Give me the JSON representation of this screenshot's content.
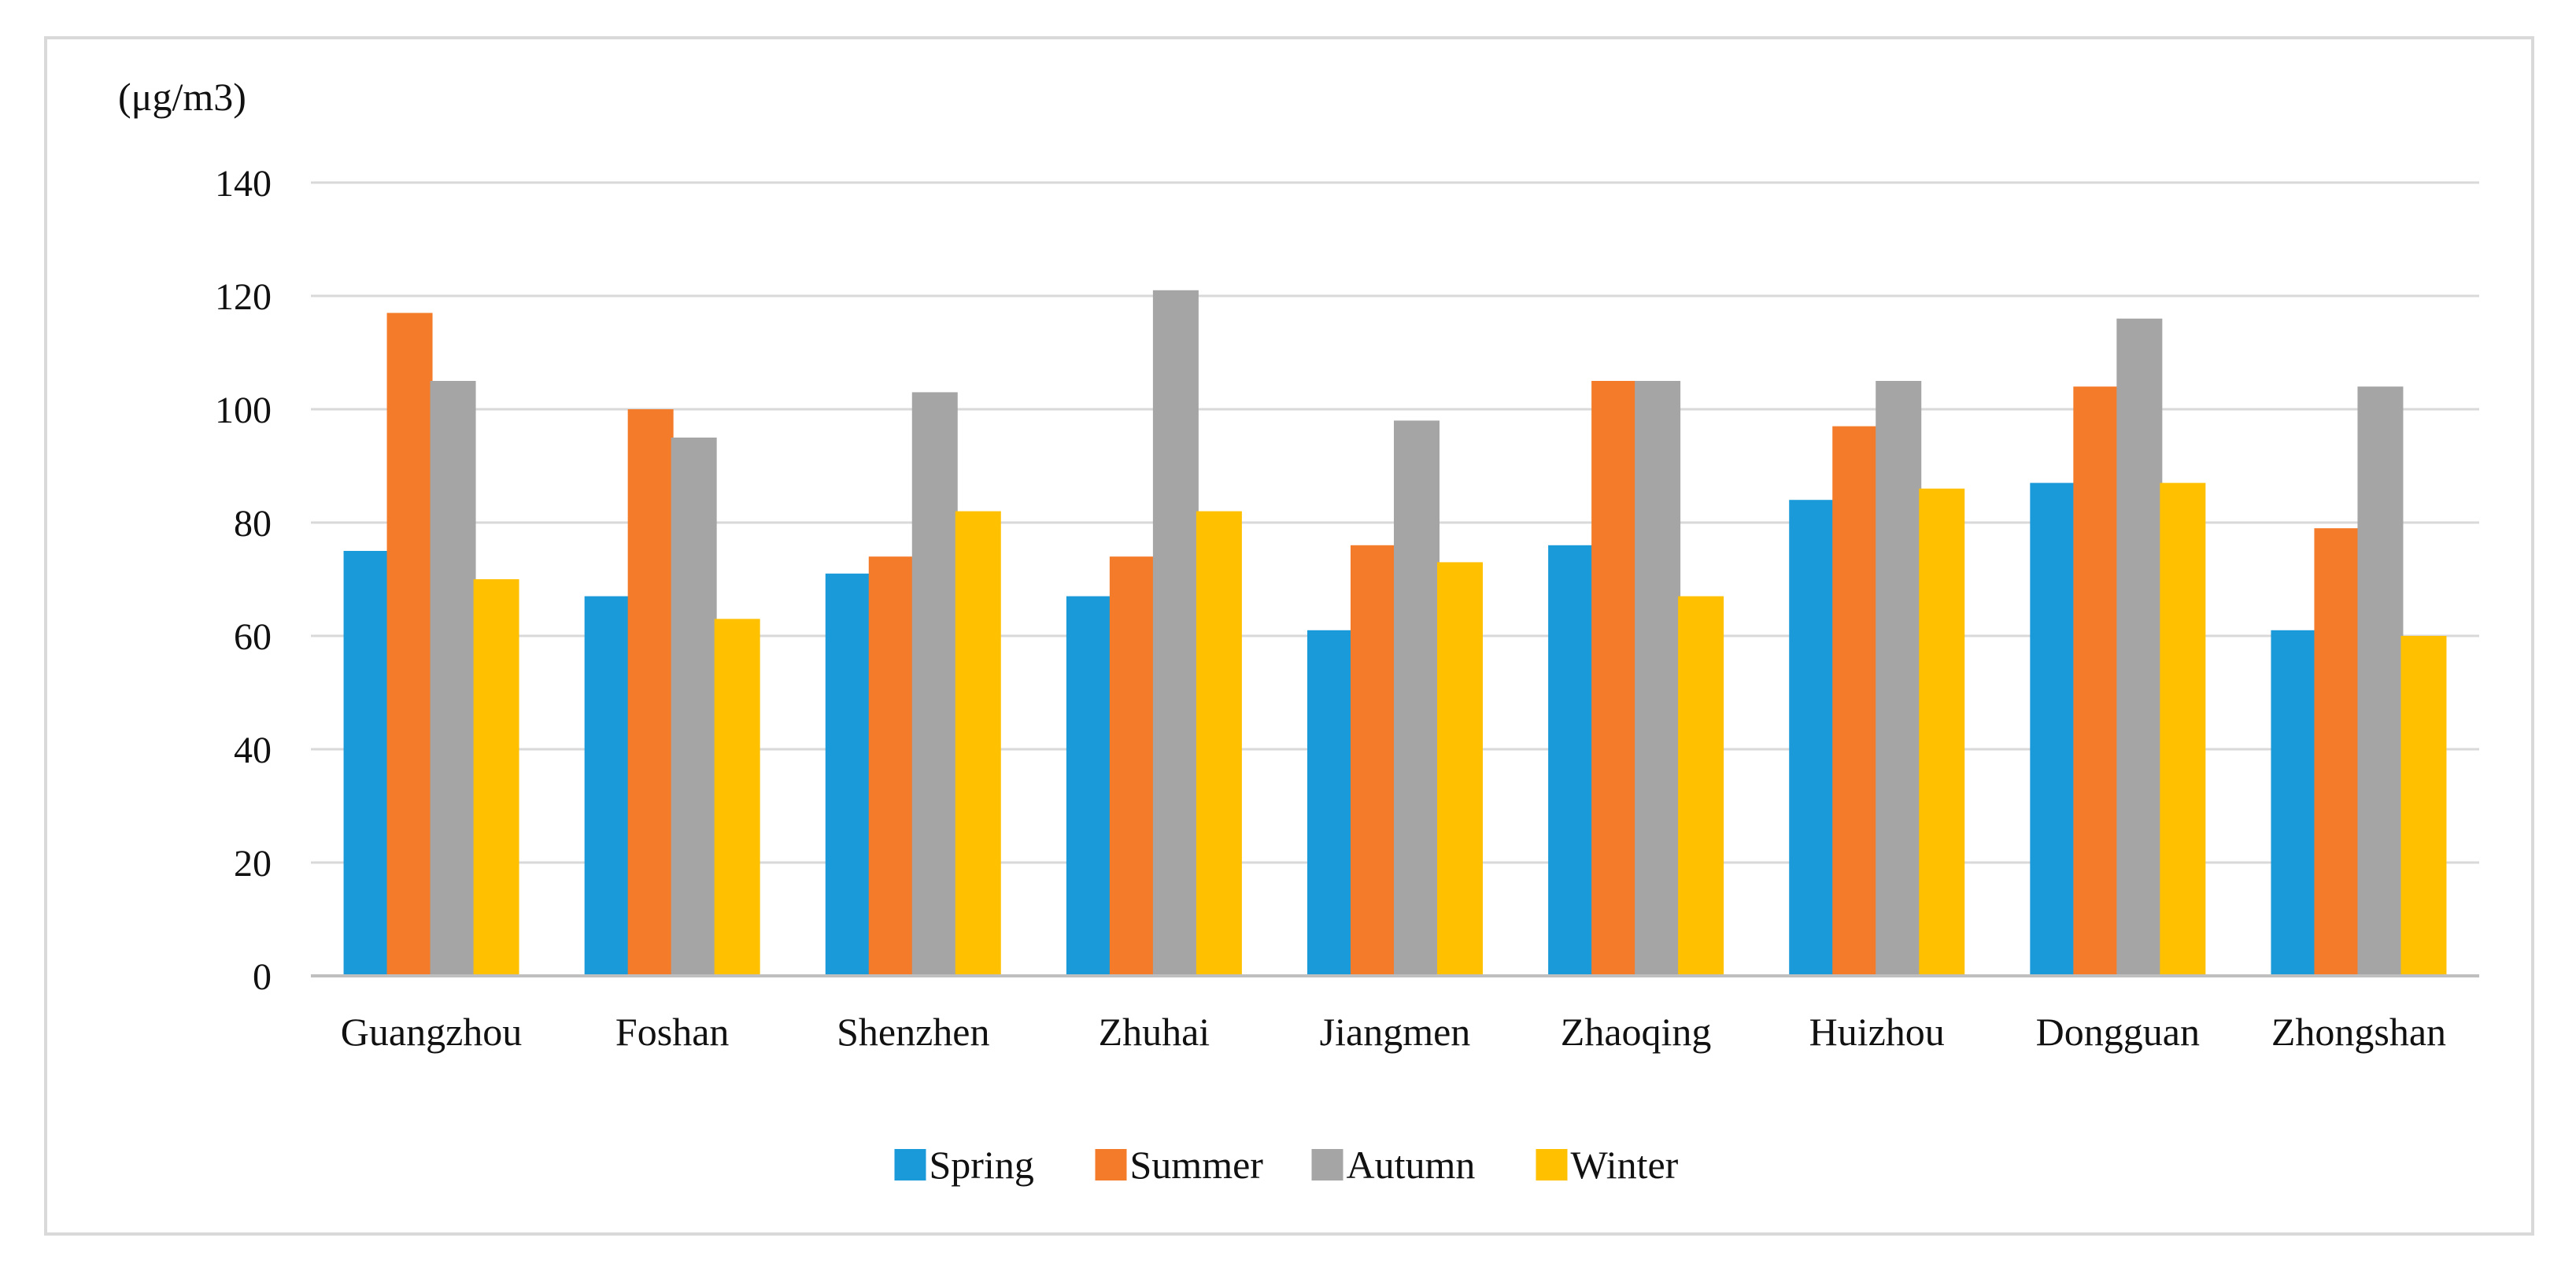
{
  "chart_data": {
    "type": "bar",
    "title": "",
    "xlabel": "",
    "ylabel": "",
    "unit_label": "(μg/m3)",
    "ylim": [
      0,
      140
    ],
    "yticks": [
      0,
      20,
      40,
      60,
      80,
      100,
      120,
      140
    ],
    "grid": true,
    "legend_position": "bottom",
    "categories": [
      "Guangzhou",
      "Foshan",
      "Shenzhen",
      "Zhuhai",
      "Jiangmen",
      "Zhaoqing",
      "Huizhou",
      "Dongguan",
      "Zhongshan"
    ],
    "series": [
      {
        "name": "Spring",
        "color": "#1a9ad9",
        "values": [
          75,
          67,
          71,
          67,
          61,
          76,
          84,
          87,
          61
        ]
      },
      {
        "name": "Summer",
        "color": "#f47b2a",
        "values": [
          117,
          100,
          74,
          74,
          76,
          105,
          97,
          104,
          79
        ]
      },
      {
        "name": "Autumn",
        "color": "#a5a5a5",
        "values": [
          105,
          95,
          103,
          121,
          98,
          105,
          105,
          116,
          104
        ]
      },
      {
        "name": "Winter",
        "color": "#ffc000",
        "values": [
          70,
          63,
          82,
          82,
          73,
          67,
          86,
          87,
          60
        ]
      }
    ]
  }
}
